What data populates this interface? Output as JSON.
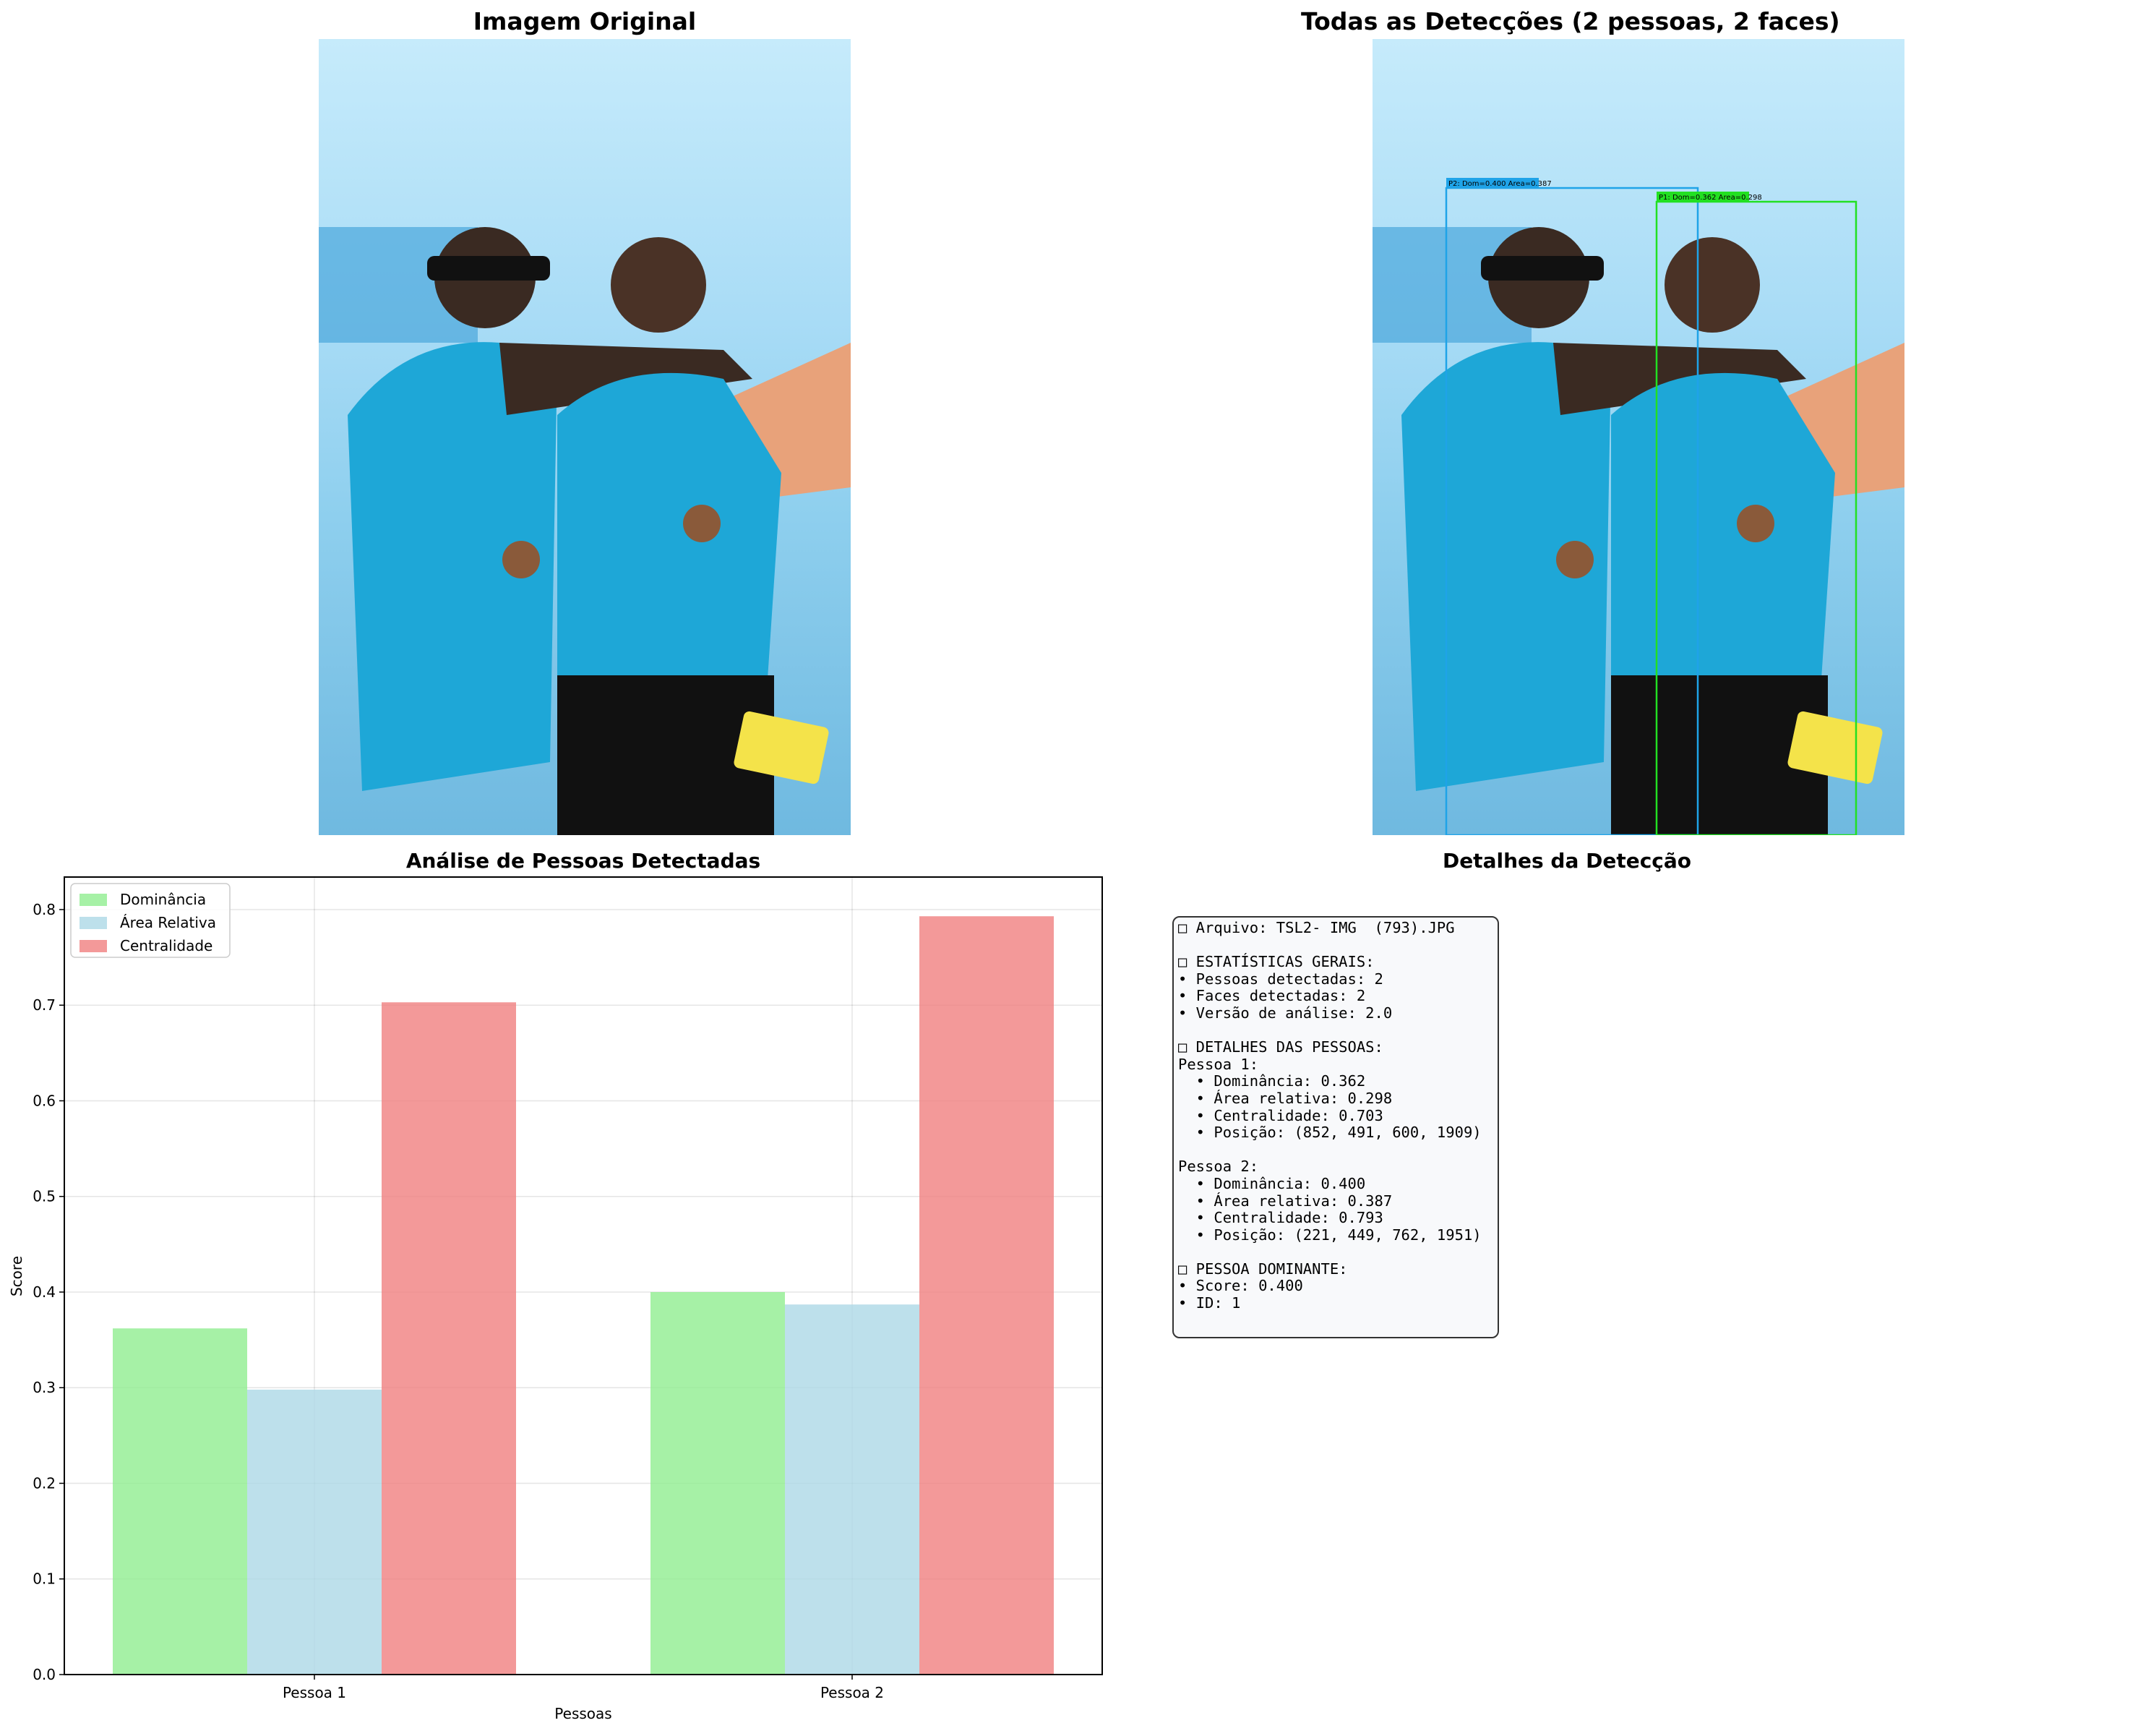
{
  "panels": {
    "original_title": "Imagem Original",
    "detections_title": "Todas as Detecções (2 pessoas, 2 faces)",
    "chart_title": "Análise de Pessoas Detectadas",
    "details_title": "Detalhes da Detecção"
  },
  "detections": {
    "boxes": [
      {
        "label": "P2: Dom=0.400 Area=0.387",
        "color": "#1fa3e8"
      },
      {
        "label": "P1: Dom=0.362 Area=0.298",
        "color": "#22e022"
      }
    ]
  },
  "chart_data": {
    "type": "bar",
    "title": "Análise de Pessoas Detectadas",
    "xlabel": "Pessoas",
    "ylabel": "Score",
    "categories": [
      "Pessoa 1",
      "Pessoa 2"
    ],
    "series": [
      {
        "name": "Dominância",
        "values": [
          0.362,
          0.4
        ],
        "color": "#90ee90"
      },
      {
        "name": "Área Relativa",
        "values": [
          0.298,
          0.387
        ],
        "color": "#add8e6"
      },
      {
        "name": "Centralidade",
        "values": [
          0.703,
          0.793
        ],
        "color": "#f08080"
      }
    ],
    "ylim": [
      0,
      0.834
    ],
    "yticks": [
      "0.0",
      "0.1",
      "0.2",
      "0.3",
      "0.4",
      "0.5",
      "0.6",
      "0.7",
      "0.8"
    ],
    "grid": true,
    "legend_position": "top-left"
  },
  "details": {
    "text": "□ Arquivo: TSL2- IMG  (793).JPG\n\n□ ESTATÍSTICAS GERAIS:\n• Pessoas detectadas: 2\n• Faces detectadas: 2\n• Versão de análise: 2.0\n\n□ DETALHES DAS PESSOAS:\nPessoa 1:\n  • Dominância: 0.362\n  • Área relativa: 0.298\n  • Centralidade: 0.703\n  • Posição: (852, 491, 600, 1909)\n\nPessoa 2:\n  • Dominância: 0.400\n  • Área relativa: 0.387\n  • Centralidade: 0.793\n  • Posição: (221, 449, 762, 1951)\n\n□ PESSOA DOMINANTE:\n• Score: 0.400\n• ID: 1"
  }
}
